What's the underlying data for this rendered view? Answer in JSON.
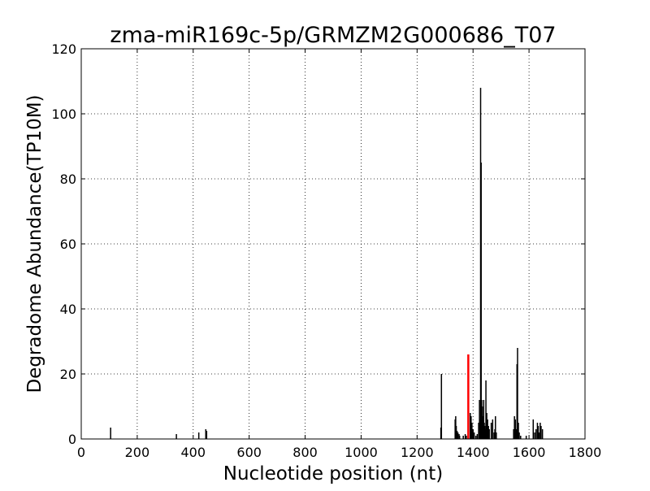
{
  "chart_data": {
    "type": "bar",
    "title": "zma-miR169c-5p/GRMZM2G000686_T07",
    "xlabel": "Nucleotide position (nt)",
    "ylabel": "Degradome Abundance(TP10M)",
    "xlim": [
      0,
      1800
    ],
    "ylim": [
      0,
      120
    ],
    "xticks": [
      0,
      200,
      400,
      600,
      800,
      1000,
      1200,
      1400,
      1600,
      1800
    ],
    "yticks": [
      0,
      20,
      40,
      60,
      80,
      100,
      120
    ],
    "grid": true,
    "series": [
      {
        "color": "#000000",
        "points": [
          [
            105,
            3.5
          ],
          [
            340,
            1.5
          ],
          [
            420,
            2
          ],
          [
            445,
            3
          ],
          [
            448,
            2.5
          ],
          [
            1285,
            3.5
          ],
          [
            1287,
            20
          ],
          [
            1336,
            6
          ],
          [
            1338,
            7
          ],
          [
            1340,
            4
          ],
          [
            1343,
            2.5
          ],
          [
            1346,
            2
          ],
          [
            1350,
            1.5
          ],
          [
            1352,
            1
          ],
          [
            1365,
            1
          ],
          [
            1372,
            1.5
          ],
          [
            1376,
            1
          ],
          [
            1390,
            8
          ],
          [
            1393,
            7
          ],
          [
            1396,
            5
          ],
          [
            1400,
            3
          ],
          [
            1404,
            2
          ],
          [
            1410,
            1
          ],
          [
            1415,
            1.5
          ],
          [
            1420,
            5
          ],
          [
            1423,
            12
          ],
          [
            1425,
            6
          ],
          [
            1427,
            108
          ],
          [
            1429,
            85
          ],
          [
            1431,
            12
          ],
          [
            1433,
            10
          ],
          [
            1436,
            7
          ],
          [
            1438,
            12
          ],
          [
            1440,
            5
          ],
          [
            1442,
            4
          ],
          [
            1444,
            3
          ],
          [
            1446,
            18
          ],
          [
            1449,
            8
          ],
          [
            1452,
            6
          ],
          [
            1455,
            4
          ],
          [
            1458,
            3
          ],
          [
            1465,
            5
          ],
          [
            1470,
            6
          ],
          [
            1475,
            2
          ],
          [
            1478,
            3
          ],
          [
            1480,
            7
          ],
          [
            1483,
            2
          ],
          [
            1545,
            3
          ],
          [
            1548,
            7
          ],
          [
            1551,
            6
          ],
          [
            1554,
            3
          ],
          [
            1557,
            23
          ],
          [
            1559,
            28
          ],
          [
            1562,
            5
          ],
          [
            1565,
            2
          ],
          [
            1570,
            1
          ],
          [
            1590,
            1
          ],
          [
            1615,
            6
          ],
          [
            1620,
            2
          ],
          [
            1625,
            3
          ],
          [
            1630,
            5
          ],
          [
            1633,
            4
          ],
          [
            1636,
            2
          ],
          [
            1640,
            5
          ],
          [
            1643,
            4
          ],
          [
            1648,
            3
          ]
        ]
      },
      {
        "color": "#ff0000",
        "points": [
          [
            1383,
            26
          ]
        ]
      }
    ]
  }
}
